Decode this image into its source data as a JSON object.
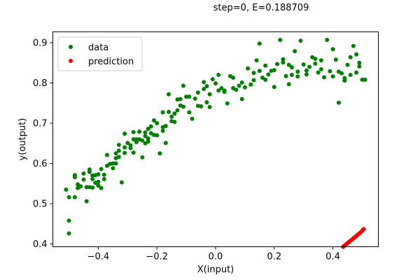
{
  "chart_data": {
    "type": "scatter",
    "title": "step=0, E=0.188709",
    "xlabel": "X(input)",
    "ylabel": "y(output)",
    "xlim": [
      -0.555,
      0.555
    ],
    "ylim": [
      0.393,
      0.927
    ],
    "xticks": [
      -0.4,
      -0.2,
      0.0,
      0.2,
      0.4
    ],
    "xtick_labels": [
      "−0.4",
      "−0.2",
      "0.0",
      "0.2",
      "0.4"
    ],
    "yticks": [
      0.4,
      0.5,
      0.6,
      0.7,
      0.8,
      0.9
    ],
    "ytick_labels": [
      "0.4",
      "0.5",
      "0.6",
      "0.7",
      "0.8",
      "0.9"
    ],
    "grid": false,
    "legend_position": "top-left",
    "series": [
      {
        "name": "data",
        "color": "#008000",
        "marker": "circle",
        "points": [
          [
            -0.51,
            0.535
          ],
          [
            -0.5,
            0.516
          ],
          [
            -0.5,
            0.458
          ],
          [
            -0.5,
            0.426
          ],
          [
            -0.48,
            0.571
          ],
          [
            -0.48,
            0.566
          ],
          [
            -0.48,
            0.516
          ],
          [
            -0.47,
            0.548
          ],
          [
            -0.47,
            0.539
          ],
          [
            -0.46,
            0.543
          ],
          [
            -0.45,
            0.575
          ],
          [
            -0.44,
            0.541
          ],
          [
            -0.44,
            0.506
          ],
          [
            -0.43,
            0.585
          ],
          [
            -0.43,
            0.541
          ],
          [
            -0.43,
            0.579
          ],
          [
            -0.42,
            0.57
          ],
          [
            -0.42,
            0.561
          ],
          [
            -0.42,
            0.54
          ],
          [
            -0.41,
            0.571
          ],
          [
            -0.4,
            0.545
          ],
          [
            -0.4,
            0.573
          ],
          [
            -0.4,
            0.554
          ],
          [
            -0.39,
            0.586
          ],
          [
            -0.39,
            0.539
          ],
          [
            -0.38,
            0.561
          ],
          [
            -0.37,
            0.594
          ],
          [
            -0.37,
            0.621
          ],
          [
            -0.36,
            0.599
          ],
          [
            -0.35,
            0.588
          ],
          [
            -0.35,
            0.6
          ],
          [
            -0.34,
            0.6
          ],
          [
            -0.34,
            0.625
          ],
          [
            -0.33,
            0.616
          ],
          [
            -0.33,
            0.632
          ],
          [
            -0.33,
            0.646
          ],
          [
            -0.32,
            0.553
          ],
          [
            -0.31,
            0.674
          ],
          [
            -0.31,
            0.626
          ],
          [
            -0.3,
            0.651
          ],
          [
            -0.29,
            0.638
          ],
          [
            -0.29,
            0.645
          ],
          [
            -0.28,
            0.678
          ],
          [
            -0.28,
            0.627
          ],
          [
            -0.27,
            0.66
          ],
          [
            -0.27,
            0.653
          ],
          [
            -0.26,
            0.66
          ],
          [
            -0.26,
            0.679
          ],
          [
            -0.25,
            0.615
          ],
          [
            -0.25,
            0.657
          ],
          [
            -0.24,
            0.677
          ],
          [
            -0.24,
            0.65
          ],
          [
            -0.23,
            0.686
          ],
          [
            -0.23,
            0.654
          ],
          [
            -0.23,
            0.662
          ],
          [
            -0.22,
            0.692
          ],
          [
            -0.22,
            0.675
          ],
          [
            -0.21,
            0.707
          ],
          [
            -0.2,
            0.7
          ],
          [
            -0.2,
            0.67
          ],
          [
            -0.19,
            0.625
          ],
          [
            -0.18,
            0.681
          ],
          [
            -0.18,
            0.69
          ],
          [
            -0.18,
            0.727
          ],
          [
            -0.17,
            0.693
          ],
          [
            -0.17,
            0.651
          ],
          [
            -0.16,
            0.772
          ],
          [
            -0.16,
            0.728
          ],
          [
            -0.15,
            0.705
          ],
          [
            -0.14,
            0.703
          ],
          [
            -0.14,
            0.724
          ],
          [
            -0.13,
            0.732
          ],
          [
            -0.13,
            0.759
          ],
          [
            -0.12,
            0.744
          ],
          [
            -0.12,
            0.76
          ],
          [
            -0.11,
            0.793
          ],
          [
            -0.1,
            0.766
          ],
          [
            -0.09,
            0.766
          ],
          [
            -0.09,
            0.727
          ],
          [
            -0.08,
            0.711
          ],
          [
            -0.07,
            0.761
          ],
          [
            -0.06,
            0.743
          ],
          [
            -0.05,
            0.742
          ],
          [
            -0.04,
            0.785
          ],
          [
            -0.04,
            0.802
          ],
          [
            -0.03,
            0.752
          ],
          [
            -0.03,
            0.792
          ],
          [
            -0.02,
            0.74
          ],
          [
            -0.01,
            0.809
          ],
          [
            0.0,
            0.799
          ],
          [
            0.01,
            0.82
          ],
          [
            0.01,
            0.781
          ],
          [
            0.02,
            0.787
          ],
          [
            0.03,
            0.778
          ],
          [
            0.03,
            0.781
          ],
          [
            0.04,
            0.749
          ],
          [
            0.05,
            0.817
          ],
          [
            0.06,
            0.787
          ],
          [
            0.07,
            0.783
          ],
          [
            0.08,
            0.793
          ],
          [
            0.09,
            0.76
          ],
          [
            0.1,
            0.789
          ],
          [
            0.11,
            0.836
          ],
          [
            0.12,
            0.796
          ],
          [
            0.13,
            0.807
          ],
          [
            0.14,
            0.856
          ],
          [
            0.15,
            0.83
          ],
          [
            0.15,
            0.898
          ],
          [
            0.16,
            0.813
          ],
          [
            0.17,
            0.843
          ],
          [
            0.18,
            0.821
          ],
          [
            0.19,
            0.83
          ],
          [
            0.2,
            0.79
          ],
          [
            0.21,
            0.847
          ],
          [
            0.22,
            0.907
          ],
          [
            0.23,
            0.851
          ],
          [
            0.24,
            0.817
          ],
          [
            0.25,
            0.797
          ],
          [
            0.25,
            0.845
          ],
          [
            0.26,
            0.82
          ],
          [
            0.27,
            0.879
          ],
          [
            0.28,
            0.828
          ],
          [
            0.29,
            0.905
          ],
          [
            0.3,
            0.846
          ],
          [
            0.31,
            0.821
          ],
          [
            0.32,
            0.84
          ],
          [
            0.33,
            0.864
          ],
          [
            0.34,
            0.86
          ],
          [
            0.35,
            0.826
          ],
          [
            0.36,
            0.856
          ],
          [
            0.37,
            0.814
          ],
          [
            0.38,
            0.907
          ],
          [
            0.39,
            0.829
          ],
          [
            0.4,
            0.884
          ],
          [
            0.41,
            0.858
          ],
          [
            0.42,
            0.751
          ],
          [
            0.43,
            0.824
          ],
          [
            0.44,
            0.806
          ],
          [
            0.45,
            0.845
          ],
          [
            0.46,
            0.82
          ],
          [
            0.47,
            0.892
          ],
          [
            0.48,
            0.871
          ],
          [
            0.49,
            0.841
          ],
          [
            0.49,
            0.85
          ],
          [
            0.5,
            0.808
          ],
          [
            0.51,
            0.808
          ],
          [
            0.48,
            0.826
          ],
          [
            0.46,
            0.864
          ],
          [
            0.44,
            0.812
          ],
          [
            0.42,
            0.828
          ],
          [
            0.4,
            0.816
          ],
          [
            0.36,
            0.834
          ],
          [
            0.34,
            0.848
          ],
          [
            0.31,
            0.831
          ],
          [
            0.28,
            0.816
          ],
          [
            0.26,
            0.839
          ],
          [
            0.23,
            0.859
          ],
          [
            0.2,
            0.832
          ],
          [
            0.17,
            0.808
          ],
          [
            0.13,
            0.825
          ],
          [
            0.09,
            0.801
          ],
          [
            0.06,
            0.813
          ],
          [
            -0.02,
            0.772
          ],
          [
            -0.06,
            0.776
          ],
          [
            -0.11,
            0.741
          ],
          [
            -0.15,
            0.716
          ],
          [
            -0.21,
            0.671
          ],
          [
            -0.24,
            0.668
          ],
          [
            -0.28,
            0.66
          ],
          [
            -0.31,
            0.64
          ],
          [
            -0.34,
            0.613
          ],
          [
            -0.38,
            0.572
          ],
          [
            -0.41,
            0.552
          ],
          [
            -0.45,
            0.56
          ]
        ]
      },
      {
        "name": "prediction",
        "color": "#ff0000",
        "marker": "circle",
        "points": [
          [
            0.435,
            0.393
          ],
          [
            0.44,
            0.396
          ],
          [
            0.445,
            0.399
          ],
          [
            0.45,
            0.402
          ],
          [
            0.455,
            0.405
          ],
          [
            0.46,
            0.408
          ],
          [
            0.465,
            0.411
          ],
          [
            0.47,
            0.414
          ],
          [
            0.475,
            0.417
          ],
          [
            0.48,
            0.42
          ],
          [
            0.485,
            0.423
          ],
          [
            0.49,
            0.426
          ],
          [
            0.495,
            0.429
          ],
          [
            0.5,
            0.433
          ],
          [
            0.505,
            0.437
          ]
        ]
      }
    ]
  }
}
